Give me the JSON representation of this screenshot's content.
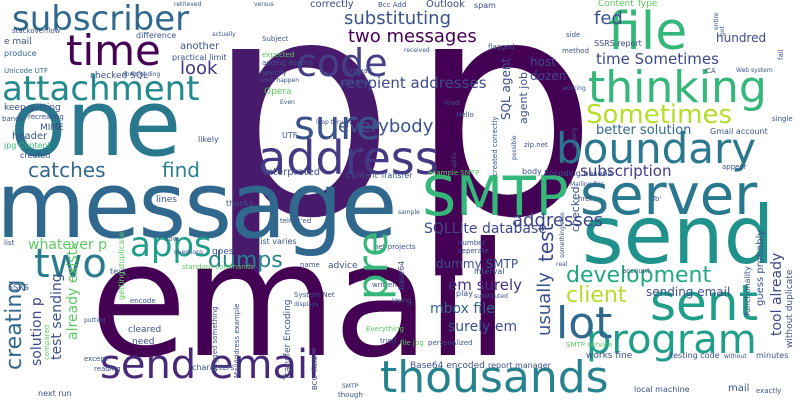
{
  "words": {
    "p": "p",
    "email": "email",
    "message": "message",
    "one": "one",
    "send": "send",
    "address": "address",
    "smtp": "SMTP",
    "server": "server",
    "boundary": "boundary",
    "thinking": "thinking",
    "file": "file",
    "send_email": "send email",
    "thousands": "thousands",
    "program": "program",
    "sent": "sent",
    "lot": "lot",
    "time": "time",
    "subscriber": "subscriber",
    "attachment": "attachment",
    "code": "code",
    "sure": "sure",
    "two": "two",
    "apps": "apps",
    "pre": "pre",
    "catches": "catches",
    "find": "find",
    "dumps": "dumps",
    "sometimes": "Sometimes",
    "development": "development",
    "client": "client",
    "test": "test",
    "usually": "usually",
    "creating": "creating",
    "everybody": "everybody",
    "two_messages": "two messages",
    "substituting": "substituting",
    "recipient_addresses": "recipient addresses",
    "addresses": "addresses",
    "subscription": "subscription",
    "fed": "fed",
    "time_sometimes": "time Sometimes",
    "look": "look",
    "sqllite_database": "SQLLite database",
    "whatever_p": "whatever p",
    "dummy_smtp": "dummy SMTP",
    "em_surely": "em surely",
    "mbox_file": "mbox file",
    "surely_em": "surely em",
    "sending_email": "sending email",
    "tool_already": "tool already",
    "better_solution": "better solution",
    "already_exists": "already exists",
    "test_sending": "test sending",
    "solution_p": "solution p",
    "gmail_account": "Gmail account",
    "sql_agent": "SQL agent",
    "agent_job": "agent job",
    "host": "host",
    "dozen": "dozen",
    "hundred": "hundred",
    "outlook": "Outlook",
    "spam": "spam",
    "correctly": "correctly",
    "content_type": "Content Type",
    "ssrs_report": "SSRS report",
    "checked_sql": "checked SQL",
    "another": "another",
    "practical_limit": "practical limit",
    "difference": "difference",
    "e_mail": "e mail",
    "produce": "produce",
    "unicode_utf": "Unicode UTF",
    "keep_getting": "keep getting",
    "recreating": "recreating",
    "bands": "bands",
    "mime": "MIME",
    "header": "header",
    "jpg_content": "jpg Content",
    "created": "created",
    "stackoverflow": "stackoverflow",
    "retrieved": "retrieved",
    "bcc_add": "Bcc Add",
    "versus": "versus",
    "subject": "Subject",
    "expected": "expected",
    "adding_dozens": "adding dozens",
    "specify": "specify",
    "work_happen": "work happen",
    "opera": "Opera",
    "even": "Even",
    "instead": "Instead",
    "add_new": "Add New",
    "received": "received",
    "flagged": "flagged",
    "side": "side",
    "method": "method",
    "working": "working",
    "road": "road",
    "hello": "Hello",
    "created_correctly": "created correctly",
    "possible": "possible",
    "relying": "relying",
    "zip_net": "zip.net",
    "utf": "UTF",
    "loop_thru": "loop thru",
    "likely": "likely",
    "interpreted": "interpreted",
    "content_transfer": "Content Transfer",
    "example_smtp": "example SMTP",
    "splits": "splits",
    "body": "body",
    "encoding_base64": "Encoding base64",
    "mailing_bcc": "Mailing Bcc",
    "appear": "appear",
    "href": "href",
    "to": "To'",
    "thanks": "thanks",
    "lines": "lines",
    "telnet": "telnet'ed",
    "sample": "sample",
    "list": "list",
    "now": "now",
    "getting_duplicate": "getting duplicate",
    "questions": "questions",
    "goes": "goes",
    "list_varies": "list varies",
    "net_projects": "net projects",
    "number": "number",
    "separate": "seperate",
    "something_else": "something else",
    "interval": "interval",
    "real": "real",
    "standard_commands": "standard commands",
    "name": "name",
    "advice": "advice",
    "base64": "base64",
    "written": "written",
    "play": "play",
    "substituted": "substituted",
    "using": "Using",
    "guess_probably": "guess probably",
    "functionality": "functionality",
    "without_duplicate": "without duplicate",
    "account": "account",
    "ssrs": "SSRS",
    "encode": "encode",
    "putting": "putting",
    "compared": "compared",
    "except": "except",
    "reading": "reading",
    "next_run": "next run",
    "text": "text",
    "cleared": "cleared",
    "need": "need",
    "bogged_something": "bogged something",
    "mailaddress_example": "MailAddress example",
    "transfer_encoding": "Transfer Encoding",
    "system_net": "System Net",
    "displays": "displays",
    "bcc_field": "BCC' field",
    "smtp_small": "SMTP",
    "though": "though",
    "characters": "characters",
    "everything": "Everything",
    "file_jpg": "file jpg",
    "tried": "tried",
    "personalized": "personalized",
    "base64_encoded": "Base64 encoded",
    "report_manager": "report manager",
    "smtp_service": "SMTP service",
    "works_fine": "works fine",
    "testing_code": "testing code",
    "without": "without",
    "minutes": "minutes",
    "local_machine": "local machine",
    "mail": "mail",
    "exactly": "exactly",
    "got": "got",
    "fail": "fail",
    "entire": "entire",
    "single": "single",
    "web_system": "Web system",
    "downloading": "downloading",
    "actually": "actually",
    "ca": "CA"
  }
}
